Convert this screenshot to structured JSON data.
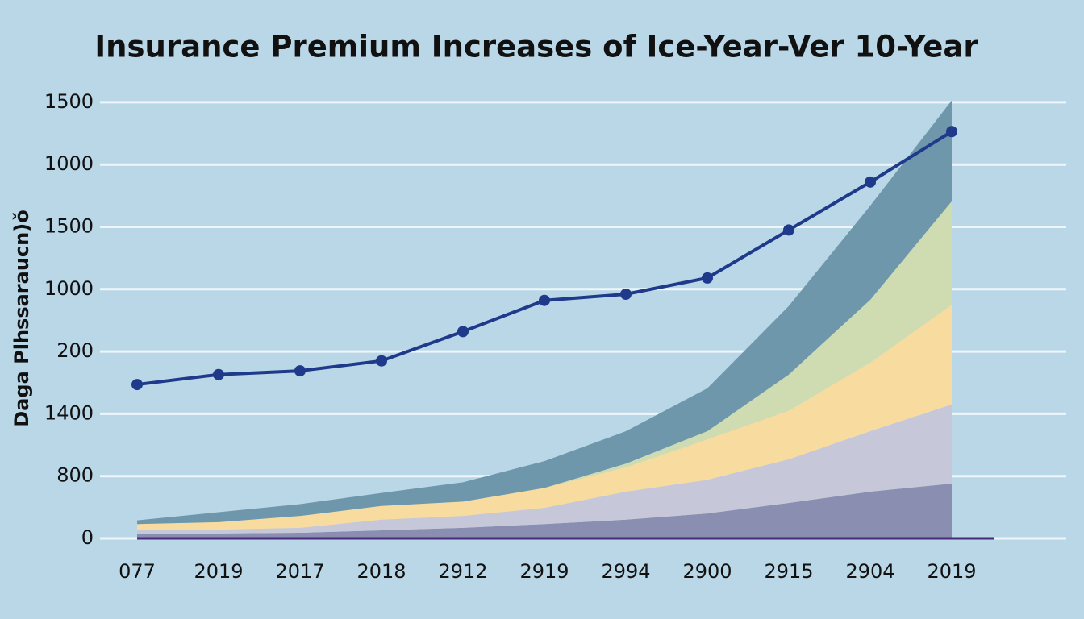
{
  "chart_data": {
    "type": "area",
    "title": "Insurance Premium Increases of Ice-Year-Ver 10-Year",
    "y_label": "Daga Plhssaraucn)ǒ",
    "categories": [
      "077",
      "2019",
      "2017",
      "2018",
      "2912",
      "2919",
      "2994",
      "2900",
      "2915",
      "2904",
      "2019"
    ],
    "ylim": [
      0,
      7.4
    ],
    "yticks": [
      {
        "value": 0,
        "label": "0"
      },
      {
        "value": 1,
        "label": "800"
      },
      {
        "value": 2,
        "label": "1400"
      },
      {
        "value": 3,
        "label": "200"
      },
      {
        "value": 4,
        "label": "1000"
      },
      {
        "value": 5,
        "label": "1500"
      },
      {
        "value": 6,
        "label": "1000"
      },
      {
        "value": 7,
        "label": "1500"
      }
    ],
    "grid": true,
    "series": [
      {
        "type": "area",
        "color": "#8a8fb2",
        "values": [
          0.08,
          0.08,
          0.09,
          0.13,
          0.17,
          0.23,
          0.3,
          0.4,
          0.57,
          0.75,
          0.88
        ]
      },
      {
        "type": "area",
        "color": "#c6c8da",
        "values": [
          0.06,
          0.06,
          0.08,
          0.17,
          0.19,
          0.26,
          0.45,
          0.54,
          0.7,
          0.97,
          1.27
        ]
      },
      {
        "type": "area",
        "color": "#f8dc9f",
        "values": [
          0.09,
          0.12,
          0.19,
          0.22,
          0.23,
          0.32,
          0.39,
          0.65,
          0.78,
          1.1,
          1.6
        ]
      },
      {
        "type": "area",
        "color": "#cfdcb2",
        "values": [
          0,
          0,
          0,
          0,
          0,
          0,
          0.06,
          0.13,
          0.58,
          1.01,
          1.66
        ]
      },
      {
        "type": "area",
        "color": "#6f97ab",
        "values": [
          0.06,
          0.16,
          0.19,
          0.21,
          0.31,
          0.43,
          0.52,
          0.69,
          1.1,
          1.51,
          1.62
        ]
      },
      {
        "type": "line",
        "color": "#1f3a8a",
        "values": [
          2.47,
          2.63,
          2.69,
          2.85,
          3.32,
          3.82,
          3.92,
          4.18,
          4.95,
          5.72,
          6.53
        ]
      }
    ]
  }
}
